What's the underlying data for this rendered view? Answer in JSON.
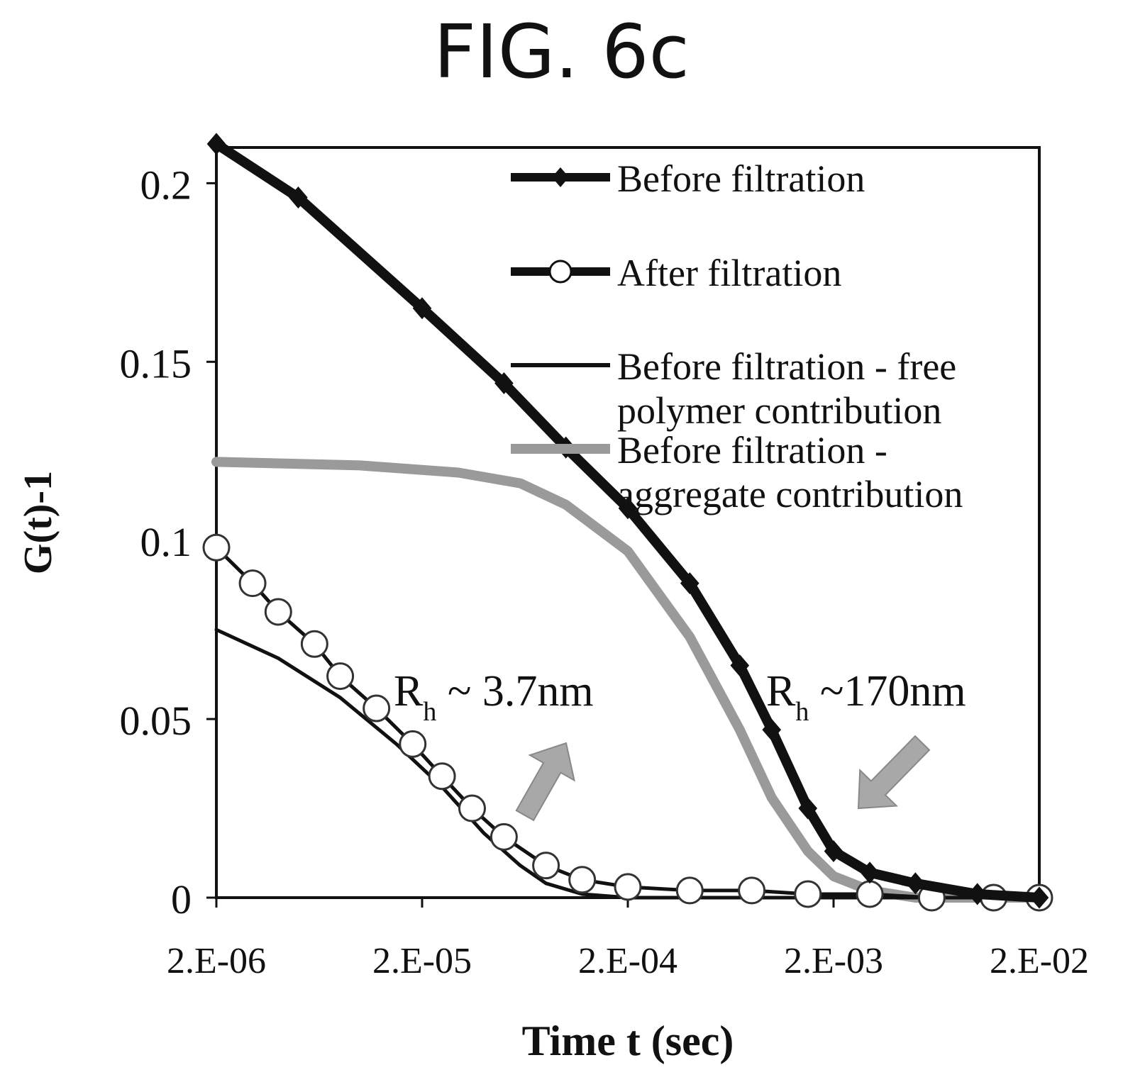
{
  "figure_label": "FIG. 6c",
  "chart_data": {
    "type": "line",
    "xlabel": "Time t (sec)",
    "ylabel": "G(t)-1",
    "xscale": "log",
    "xlim": [
      2e-06,
      0.02
    ],
    "ylim": [
      0,
      0.21
    ],
    "x_tick_labels": [
      "2.E-06",
      "2.E-05",
      "2.E-04",
      "2.E-03",
      "2.E-02"
    ],
    "y_tick_labels": [
      "0",
      "0.05",
      "0.1",
      "0.15",
      "0.2"
    ],
    "y_ticks": [
      0,
      0.05,
      0.1,
      0.15,
      0.2
    ],
    "grid": false,
    "legend_position": "top-right",
    "series": [
      {
        "name": "Before filtration",
        "marker": "filled-diamond",
        "color": "#111111",
        "x": [
          2e-06,
          5e-06,
          2e-05,
          5e-05,
          0.0001,
          0.0002,
          0.0004,
          0.0007,
          0.001,
          0.0015,
          0.002,
          0.003,
          0.005,
          0.01,
          0.02
        ],
        "y": [
          0.211,
          0.196,
          0.165,
          0.144,
          0.126,
          0.109,
          0.088,
          0.065,
          0.047,
          0.025,
          0.013,
          0.007,
          0.004,
          0.001,
          0.0
        ]
      },
      {
        "name": "After filtration",
        "marker": "open-circle",
        "color": "#111111",
        "x": [
          2e-06,
          3e-06,
          4e-06,
          6e-06,
          8e-06,
          1.2e-05,
          1.8e-05,
          2.5e-05,
          3.5e-05,
          5e-05,
          8e-05,
          0.00012,
          0.0002,
          0.0004,
          0.0008,
          0.0015,
          0.003,
          0.006,
          0.012,
          0.02
        ],
        "y": [
          0.098,
          0.088,
          0.08,
          0.071,
          0.062,
          0.053,
          0.043,
          0.034,
          0.025,
          0.017,
          0.009,
          0.005,
          0.003,
          0.002,
          0.002,
          0.001,
          0.001,
          0.0,
          0.0,
          0.0
        ]
      },
      {
        "name": "Before filtration - free polymer contribution",
        "marker": "none",
        "color": "#111111",
        "x": [
          2e-06,
          4e-06,
          8e-06,
          1.5e-05,
          2.5e-05,
          4e-05,
          6e-05,
          8e-05,
          0.00012,
          0.0002,
          0.0005,
          0.002,
          0.02
        ],
        "y": [
          0.075,
          0.067,
          0.056,
          0.043,
          0.031,
          0.018,
          0.009,
          0.004,
          0.001,
          0.0,
          0.0,
          0.0,
          0.0
        ]
      },
      {
        "name": "Before filtration - aggregate contribution",
        "marker": "none",
        "color": "#9a9a9a",
        "x": [
          2e-06,
          1e-05,
          3e-05,
          6e-05,
          0.0001,
          0.0002,
          0.0004,
          0.0007,
          0.001,
          0.0015,
          0.002,
          0.003,
          0.005,
          0.02
        ],
        "y": [
          0.122,
          0.121,
          0.119,
          0.116,
          0.11,
          0.097,
          0.073,
          0.047,
          0.028,
          0.013,
          0.006,
          0.002,
          0.0,
          0.0
        ]
      }
    ],
    "annotations": [
      {
        "label_main": "R",
        "label_sub": "h",
        "label_rest": " ~ 3.7nm",
        "arrow": "up-right",
        "points_to": [
          6e-05,
          0.008
        ]
      },
      {
        "label_main": "R",
        "label_sub": "h",
        "label_rest": " ~170nm",
        "arrow": "down-left",
        "points_to": [
          0.0015,
          0.012
        ]
      }
    ]
  }
}
